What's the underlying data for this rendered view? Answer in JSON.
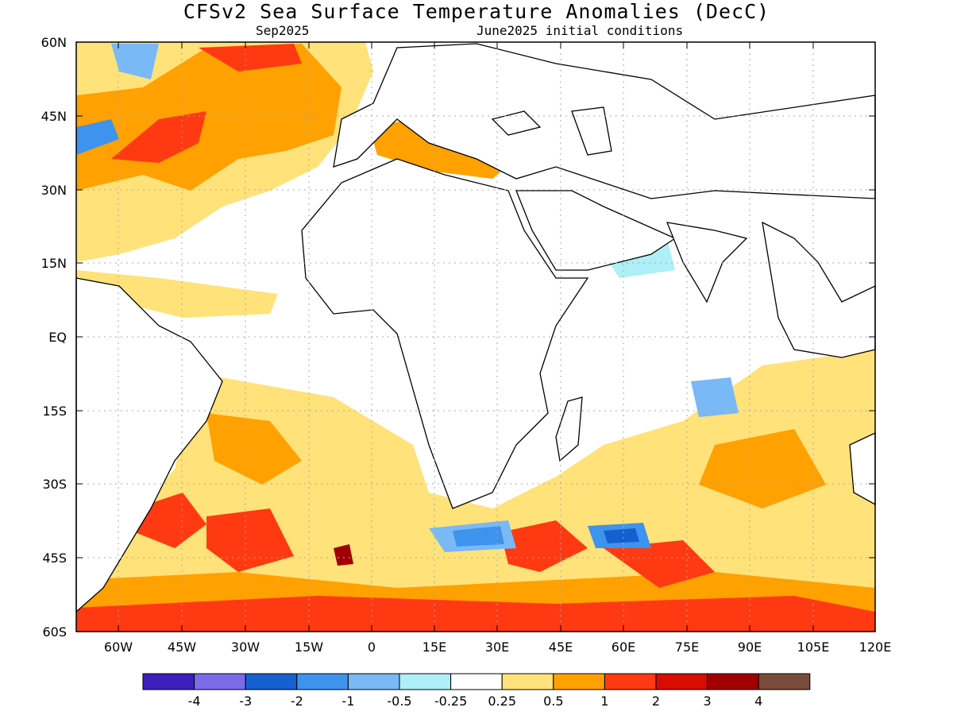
{
  "title": "CFSv2 Sea Surface Temperature Anomalies (DecC)",
  "subtitle_left": "Sep2025",
  "subtitle_right": "June2025 initial conditions",
  "lat_labels": [
    "60N",
    "45N",
    "30N",
    "15N",
    "EQ",
    "15S",
    "30S",
    "45S",
    "60S"
  ],
  "lon_labels": [
    "60W",
    "45W",
    "30W",
    "15W",
    "0",
    "15E",
    "30E",
    "45E",
    "60E",
    "75E",
    "90E",
    "105E",
    "120E"
  ],
  "colorbar": {
    "colors": [
      "#3a1fbd",
      "#7b6be8",
      "#1560d1",
      "#3d93ee",
      "#79b9f5",
      "#aeeff8",
      "#ffffff",
      "#ffe27a",
      "#ffa100",
      "#ff3a12",
      "#d80c00",
      "#a10000",
      "#7a4a3a"
    ],
    "labels": [
      "-4",
      "-3",
      "-2",
      "-1",
      "-0.5",
      "-0.25",
      "0.25",
      "0.5",
      "1",
      "2",
      "3",
      "4"
    ]
  },
  "colors": {
    "land_outline": "#000000",
    "grid": "#aaaaaa"
  }
}
